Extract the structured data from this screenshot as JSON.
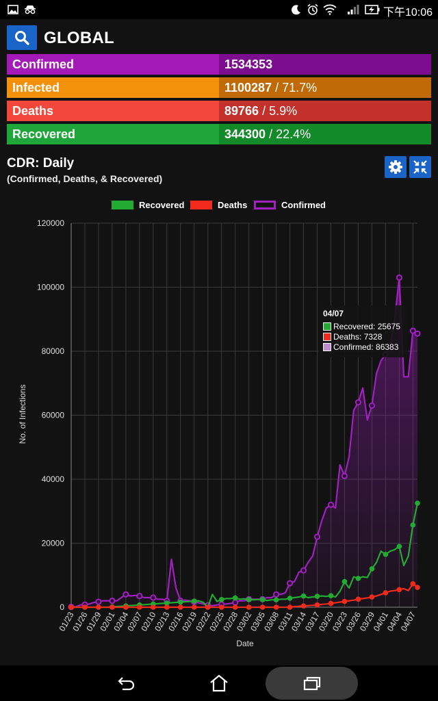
{
  "status_bar": {
    "time": "下午10:06"
  },
  "header": {
    "title": "GLOBAL"
  },
  "stats": [
    {
      "label": "Confirmed",
      "value": "1534353",
      "percent": "",
      "label_bg": "#a31ab8",
      "value_bg": "#7c0d8e"
    },
    {
      "label": "Infected",
      "value": "1100287",
      "percent": " / 71.7%",
      "label_bg": "#f4910a",
      "value_bg": "#c06a05"
    },
    {
      "label": "Deaths",
      "value": "89766",
      "percent": " / 5.9%",
      "label_bg": "#f3473b",
      "value_bg": "#c2312b"
    },
    {
      "label": "Recovered",
      "value": "344300",
      "percent": " / 22.4%",
      "label_bg": "#1ea63a",
      "value_bg": "#138a2a"
    }
  ],
  "chart_header": {
    "title": "CDR: Daily",
    "subtitle": "(Confirmed, Deaths, & Recovered)"
  },
  "legend": [
    {
      "name": "Recovered",
      "color": "#22aa33",
      "style": "filled"
    },
    {
      "name": "Deaths",
      "color": "#f02b1b",
      "style": "filled"
    },
    {
      "name": "Confirmed",
      "color": "#a020c0",
      "style": "outline"
    }
  ],
  "tooltip": {
    "title": "04/07",
    "lines": [
      "Recovered: 25675",
      "Deaths: 7328",
      "Confirmed: 86383"
    ]
  },
  "chart_data": {
    "type": "line",
    "xlabel": "Date",
    "ylabel": "No. of Infections",
    "ylim": [
      0,
      120000
    ],
    "yticks": [
      0,
      20000,
      40000,
      60000,
      80000,
      100000,
      120000
    ],
    "x": [
      "01/23",
      "01/24",
      "01/25",
      "01/26",
      "01/27",
      "01/28",
      "01/29",
      "01/30",
      "01/31",
      "02/01",
      "02/02",
      "02/03",
      "02/04",
      "02/05",
      "02/06",
      "02/07",
      "02/08",
      "02/09",
      "02/10",
      "02/11",
      "02/12",
      "02/13",
      "02/14",
      "02/15",
      "02/16",
      "02/17",
      "02/18",
      "02/19",
      "02/20",
      "02/21",
      "02/22",
      "02/23",
      "02/24",
      "02/25",
      "02/26",
      "02/27",
      "02/28",
      "02/29",
      "03/01",
      "03/02",
      "03/03",
      "03/04",
      "03/05",
      "03/06",
      "03/07",
      "03/08",
      "03/09",
      "03/10",
      "03/11",
      "03/12",
      "03/13",
      "03/14",
      "03/15",
      "03/16",
      "03/17",
      "03/18",
      "03/19",
      "03/20",
      "03/21",
      "03/22",
      "03/23",
      "03/24",
      "03/25",
      "03/26",
      "03/27",
      "03/28",
      "03/29",
      "03/30",
      "03/31",
      "04/01",
      "04/02",
      "04/03",
      "04/04",
      "04/05",
      "04/06",
      "04/07",
      "04/08"
    ],
    "xtick_labels": [
      "01/23",
      "01/26",
      "01/29",
      "02/01",
      "02/04",
      "02/07",
      "02/10",
      "02/13",
      "02/16",
      "02/19",
      "02/22",
      "02/25",
      "02/28",
      "03/02",
      "03/05",
      "03/08",
      "03/11",
      "03/14",
      "03/17",
      "03/20",
      "03/23",
      "03/26",
      "03/29",
      "04/01",
      "04/04",
      "04/07"
    ],
    "grid": true,
    "legend_position": "top",
    "series": [
      {
        "name": "Confirmed",
        "color": "#a020c0",
        "values": [
          100,
          100,
          700,
          800,
          1000,
          1500,
          1700,
          2000,
          2000,
          2000,
          2000,
          3000,
          4000,
          3500,
          3700,
          3500,
          3000,
          3000,
          3000,
          2500,
          2500,
          2000,
          15000,
          6000,
          2000,
          2200,
          2000,
          1700,
          1400,
          1000,
          600,
          500,
          700,
          900,
          1000,
          1200,
          1500,
          2000,
          2000,
          2500,
          2500,
          2500,
          2500,
          3000,
          3000,
          4000,
          4000,
          4500,
          7500,
          8000,
          11000,
          11500,
          14000,
          16000,
          22000,
          27000,
          31000,
          32000,
          31000,
          44500,
          41000,
          47000,
          61500,
          64000,
          68500,
          58500,
          63000,
          73000,
          77000,
          79000,
          81000,
          90000,
          103000,
          72000,
          72000,
          86383,
          85500
        ]
      },
      {
        "name": "Recovered",
        "color": "#22aa33",
        "values": [
          0,
          0,
          0,
          0,
          0,
          0,
          0,
          0,
          0,
          100,
          200,
          300,
          400,
          500,
          600,
          700,
          800,
          900,
          1000,
          1100,
          1200,
          1300,
          1400,
          1500,
          1600,
          1700,
          1800,
          1900,
          2000,
          1500,
          0,
          4000,
          1800,
          2400,
          2700,
          2700,
          2900,
          2500,
          2600,
          2400,
          2300,
          2400,
          2400,
          2100,
          2300,
          2300,
          2500,
          2500,
          2800,
          3000,
          3200,
          3500,
          3000,
          3200,
          3400,
          3500,
          3400,
          3600,
          3200,
          5000,
          8000,
          6000,
          9500,
          9000,
          9500,
          9300,
          12000,
          14000,
          17500,
          16500,
          17500,
          18000,
          19000,
          13000,
          16000,
          25675,
          32500
        ]
      },
      {
        "name": "Deaths",
        "color": "#f02b1b",
        "values": [
          0,
          0,
          0,
          0,
          0,
          0,
          0,
          0,
          0,
          0,
          0,
          0,
          0,
          0,
          0,
          0,
          0,
          0,
          0,
          0,
          0,
          0,
          0,
          0,
          0,
          0,
          0,
          0,
          0,
          0,
          0,
          0,
          0,
          0,
          0,
          0,
          0,
          0,
          0,
          0,
          0,
          0,
          0,
          0,
          0,
          0,
          0,
          0,
          0,
          200,
          300,
          400,
          500,
          600,
          700,
          900,
          1000,
          1200,
          1400,
          1600,
          1800,
          2000,
          2200,
          2500,
          2700,
          2900,
          3200,
          3500,
          4000,
          4500,
          5000,
          5200,
          5500,
          5800,
          5200,
          7328,
          6200
        ]
      }
    ]
  }
}
